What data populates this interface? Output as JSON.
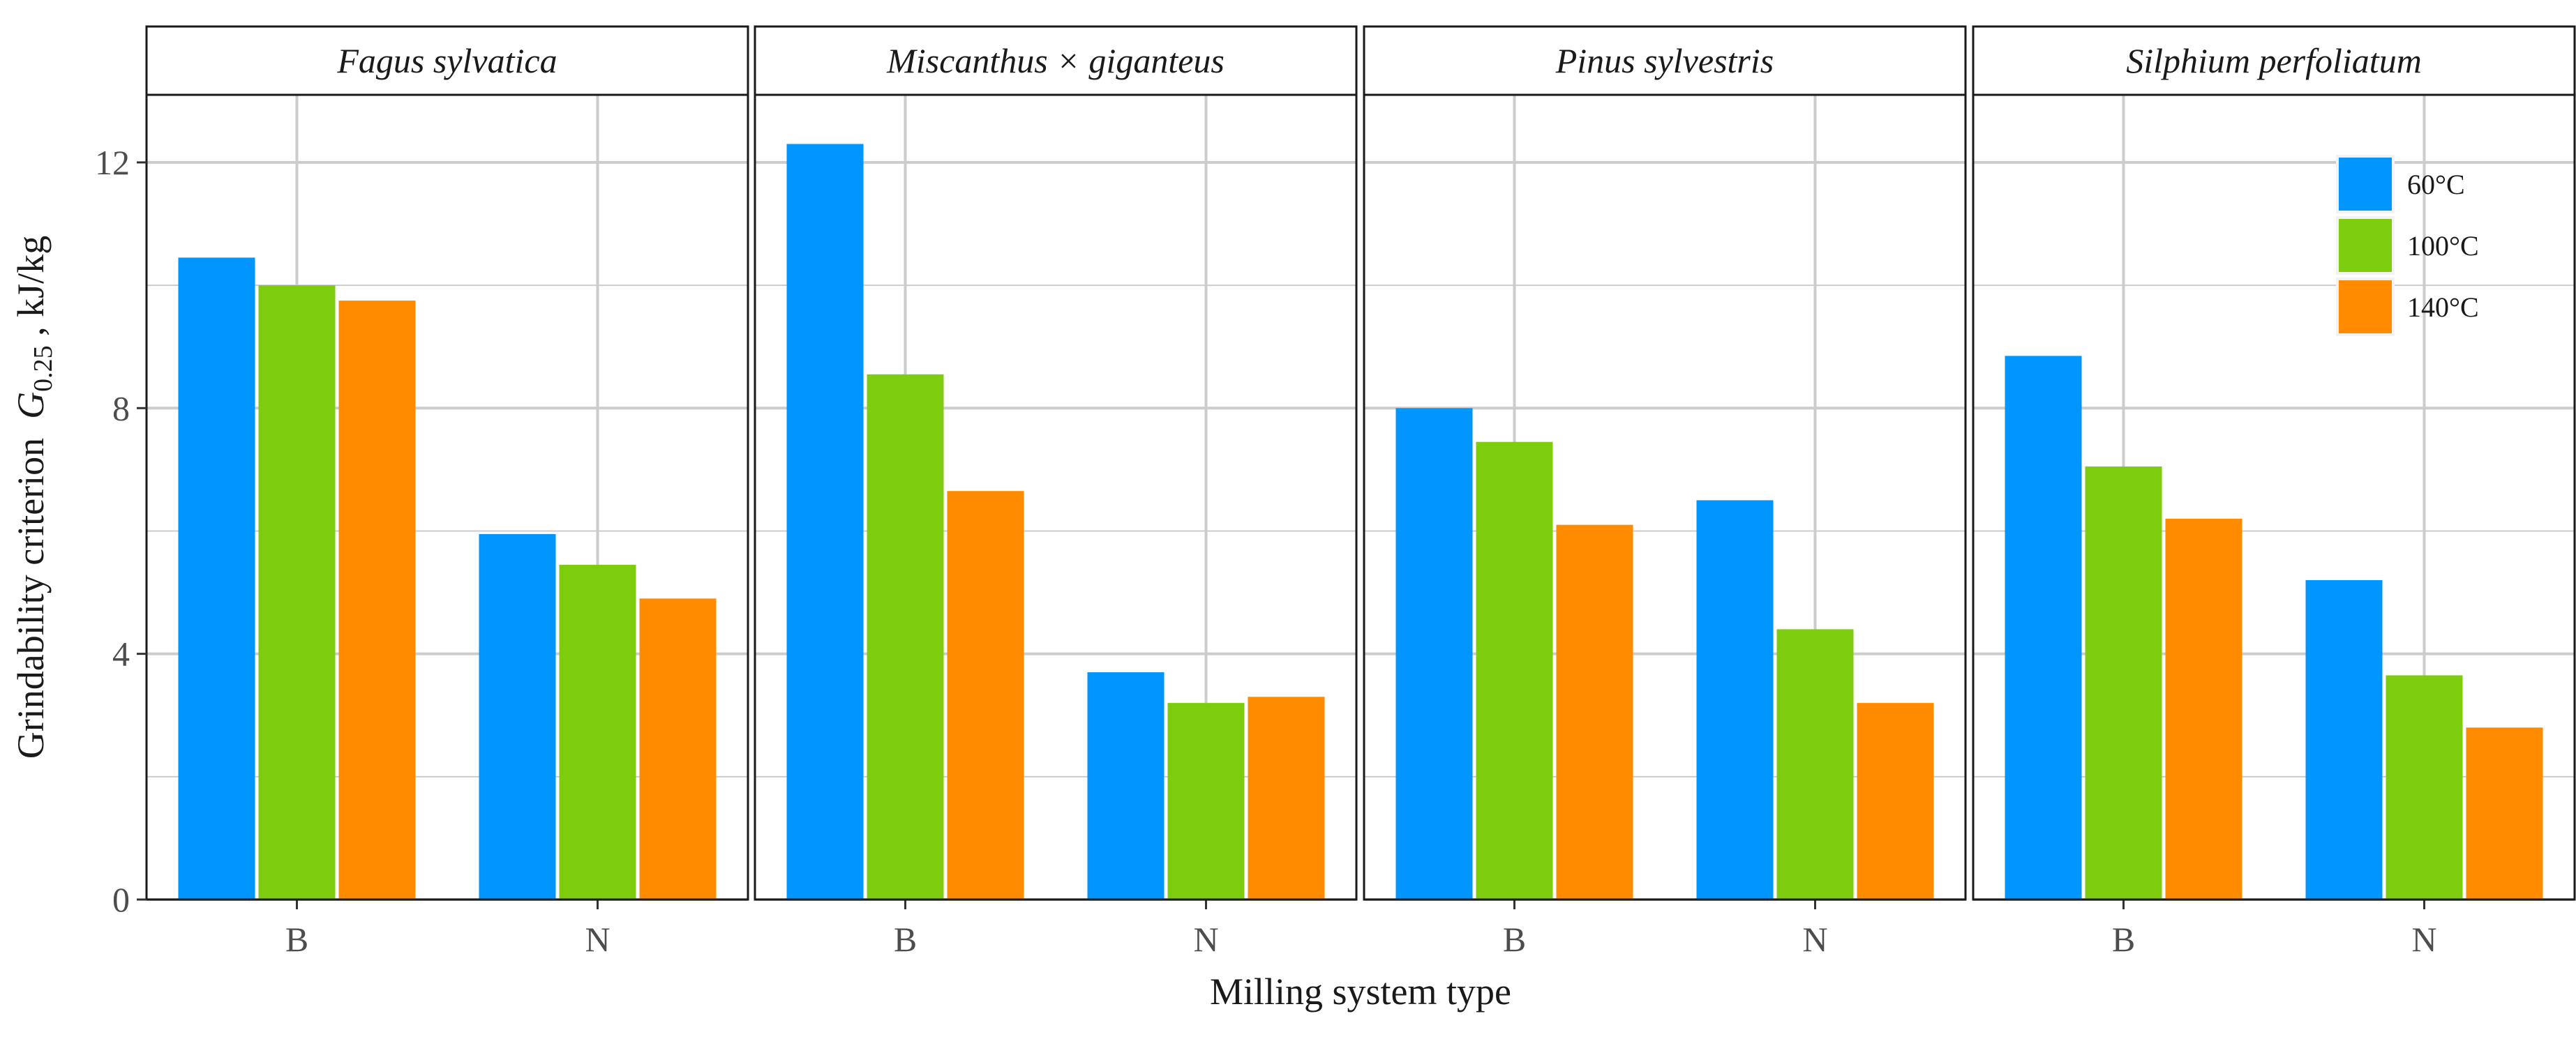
{
  "chart_data": {
    "type": "bar",
    "xlabel": "Milling system type",
    "ylabel": {
      "prefix": "Grindability criterion",
      "symbol": "G",
      "subscript": "0.25",
      "unit": ", kJ/kg"
    },
    "ylim": [
      0,
      13.1
    ],
    "yticks": [
      0,
      4,
      8,
      12
    ],
    "grid": true,
    "legend_position": "top-right",
    "categories": [
      "B",
      "N"
    ],
    "series": [
      {
        "name": "60°C",
        "color": "#0095FF"
      },
      {
        "name": "100°C",
        "color": "#7ECC0E"
      },
      {
        "name": "140°C",
        "color": "#FF8C00"
      }
    ],
    "panels": [
      {
        "title": "Fagus sylvatica",
        "values": {
          "B": [
            10.45,
            10.0,
            9.75
          ],
          "N": [
            5.95,
            5.45,
            4.9
          ]
        }
      },
      {
        "title": "Miscanthus × giganteus",
        "values": {
          "B": [
            12.3,
            8.55,
            6.65
          ],
          "N": [
            3.7,
            3.2,
            3.3
          ]
        }
      },
      {
        "title": "Pinus sylvestris",
        "values": {
          "B": [
            8.0,
            7.45,
            6.1
          ],
          "N": [
            6.5,
            4.4,
            3.2
          ]
        }
      },
      {
        "title": "Silphium perfoliatum",
        "values": {
          "B": [
            8.85,
            7.05,
            6.2
          ],
          "N": [
            5.2,
            3.65,
            2.8
          ]
        }
      }
    ]
  }
}
